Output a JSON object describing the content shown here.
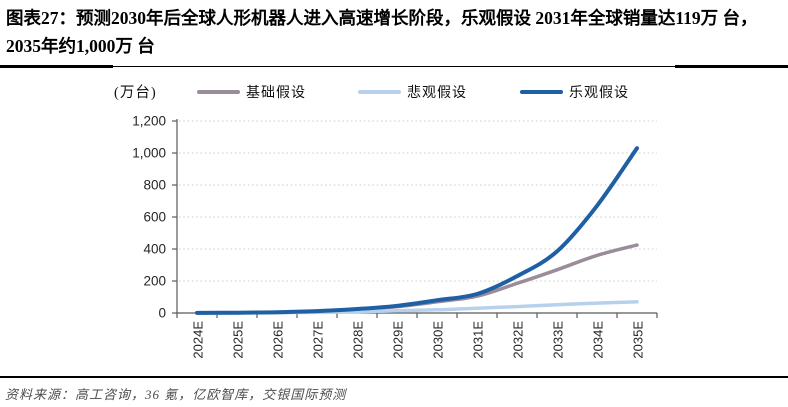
{
  "header": {
    "title": "图表27：预测2030年后全球人形机器人进入高速增长阶段，乐观假设 2031年全球销量达119万 台，2035年约1,000万 台"
  },
  "chart_data": {
    "type": "line",
    "unit_label": "(万台)",
    "categories": [
      "2024E",
      "2025E",
      "2026E",
      "2027E",
      "2028E",
      "2029E",
      "2030E",
      "2031E",
      "2032E",
      "2033E",
      "2034E",
      "2035E"
    ],
    "series": [
      {
        "name": "基础假设",
        "key": "base-scenario",
        "color": "#9a8c98",
        "values": [
          0.3,
          1.5,
          4,
          10,
          22,
          40,
          70,
          105,
          185,
          270,
          360,
          425
        ]
      },
      {
        "name": "悲观假设",
        "key": "pessimistic-scenario",
        "color": "#b7d1ec",
        "values": [
          0.2,
          0.8,
          2,
          4,
          8,
          14,
          20,
          30,
          40,
          52,
          62,
          70
        ]
      },
      {
        "name": "乐观假设",
        "key": "optimistic-scenario",
        "color": "#1f5fa3",
        "values": [
          0.5,
          2,
          5,
          12,
          25,
          45,
          80,
          119,
          230,
          385,
          670,
          1030
        ]
      }
    ],
    "ylim": [
      0,
      1200
    ],
    "yticks": [
      {
        "value": 0,
        "label": "0"
      },
      {
        "value": 200,
        "label": "200"
      },
      {
        "value": 400,
        "label": "400"
      },
      {
        "value": 600,
        "label": "600"
      },
      {
        "value": 800,
        "label": "800"
      },
      {
        "value": 1000,
        "label": "1,000"
      },
      {
        "value": 1200,
        "label": "1,200"
      }
    ],
    "grid": "horizontal-dotted",
    "legend_position": "top",
    "axis_color": "#595959",
    "grid_color": "#c9c9c9"
  },
  "footer": {
    "source": "资料来源：高工咨询，36 氪，亿欧智库，交银国际预测"
  }
}
